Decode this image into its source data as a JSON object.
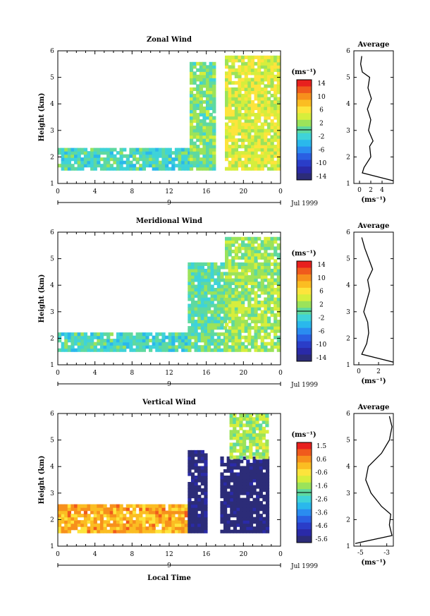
{
  "panels": [
    {
      "title": "Zonal Wind",
      "ylabel": "Height (km)",
      "unit": "(ms⁻¹)",
      "yticks": [
        "1",
        "2",
        "3",
        "4",
        "5",
        "6"
      ],
      "xticks": [
        "0",
        "4",
        "8",
        "12",
        "16",
        "20",
        "0"
      ],
      "day": "9",
      "date_label": "Jul 1999",
      "colorbar": [
        "14",
        "10",
        "6",
        "2",
        "-2",
        "-6",
        "-10",
        "-14"
      ],
      "avg": {
        "title": "Average",
        "yticks": [
          "1",
          "2",
          "3",
          "4",
          "5",
          "6"
        ],
        "xticks": [
          "0",
          "2",
          "4"
        ],
        "xlabel": "(ms⁻¹)"
      }
    },
    {
      "title": "Meridional Wind",
      "ylabel": "Height (km)",
      "unit": "(ms⁻¹)",
      "yticks": [
        "1",
        "2",
        "3",
        "4",
        "5",
        "6"
      ],
      "xticks": [
        "0",
        "4",
        "8",
        "12",
        "16",
        "20",
        "0"
      ],
      "day": "9",
      "date_label": "Jul 1999",
      "colorbar": [
        "14",
        "10",
        "6",
        "2",
        "-2",
        "-6",
        "-10",
        "-14"
      ],
      "avg": {
        "title": "Average",
        "yticks": [
          "1",
          "2",
          "3",
          "4",
          "5",
          "6"
        ],
        "xticks": [
          "0",
          "2"
        ],
        "xlabel": "(ms⁻¹)"
      }
    },
    {
      "title": "Vertical Wind",
      "ylabel": "Height (km)",
      "unit": "(ms⁻¹)",
      "yticks": [
        "1",
        "2",
        "3",
        "4",
        "5",
        "6"
      ],
      "xticks": [
        "0",
        "4",
        "8",
        "12",
        "16",
        "20",
        "0"
      ],
      "day": "9",
      "date_label": "Jul 1999",
      "xlabel": "Local Time",
      "colorbar": [
        "1.5",
        "0.6",
        "-0.6",
        "-1.6",
        "-2.6",
        "-3.6",
        "-4.6",
        "-5.6"
      ],
      "avg": {
        "title": "Average",
        "yticks": [
          "1",
          "2",
          "3",
          "4",
          "5",
          "6"
        ],
        "xticks": [
          "-5",
          "-3"
        ],
        "xlabel": "(ms⁻¹)"
      }
    }
  ],
  "chart_data": [
    {
      "type": "heatmap",
      "title": "Zonal Wind",
      "ylabel": "Height (km)",
      "x_range_hours": [
        0,
        24
      ],
      "ylim": [
        1,
        6
      ],
      "colorbar_range": [
        -14,
        14
      ],
      "colormap": "jet",
      "data_regions": [
        {
          "x": [
            0,
            14
          ],
          "y": [
            1.5,
            2.3
          ],
          "value": -1
        },
        {
          "x": [
            14.2,
            17
          ],
          "y": [
            1.5,
            5.5
          ],
          "value": 1
        },
        {
          "x": [
            18,
            24
          ],
          "y": [
            1.5,
            5.8
          ],
          "value": 4
        }
      ],
      "average_profile": {
        "xlim": [
          -1,
          6
        ],
        "height_km": [
          1.1,
          1.4,
          1.6,
          2.0,
          2.4,
          2.6,
          3.0,
          3.4,
          3.8,
          4.2,
          4.6,
          5.0,
          5.2,
          5.5,
          5.8
        ],
        "speed_ms": [
          6,
          0.5,
          0.8,
          2.0,
          1.8,
          2.4,
          1.6,
          2.0,
          1.4,
          2.1,
          1.5,
          1.8,
          0.5,
          0.2,
          0.4
        ]
      }
    },
    {
      "type": "heatmap",
      "title": "Meridional Wind",
      "ylabel": "Height (km)",
      "x_range_hours": [
        0,
        24
      ],
      "ylim": [
        1,
        6
      ],
      "colorbar_range": [
        -14,
        14
      ],
      "colormap": "jet",
      "data_regions": [
        {
          "x": [
            0,
            14
          ],
          "y": [
            1.5,
            2.2
          ],
          "value": -1
        },
        {
          "x": [
            14,
            18
          ],
          "y": [
            1.5,
            4.8
          ],
          "value": 0
        },
        {
          "x": [
            18,
            24
          ],
          "y": [
            1.5,
            5.8
          ],
          "value": 2
        }
      ],
      "average_profile": {
        "xlim": [
          -0.5,
          3.5
        ],
        "height_km": [
          1.1,
          1.4,
          1.8,
          2.2,
          2.6,
          3.0,
          3.4,
          3.8,
          4.2,
          4.6,
          5.0,
          5.4,
          5.8
        ],
        "speed_ms": [
          3.5,
          0.3,
          0.8,
          1.0,
          0.9,
          0.5,
          0.8,
          1.1,
          0.9,
          1.4,
          1.0,
          0.6,
          0.3
        ]
      }
    },
    {
      "type": "heatmap",
      "title": "Vertical Wind",
      "ylabel": "Height (km)",
      "xlabel": "Local Time",
      "x_range_hours": [
        0,
        24
      ],
      "ylim": [
        1,
        6
      ],
      "colorbar_range": [
        -5.6,
        1.5
      ],
      "colormap": "jet",
      "data_regions": [
        {
          "x": [
            0,
            14
          ],
          "y": [
            1.5,
            2.5
          ],
          "value": 0
        },
        {
          "x": [
            14,
            16
          ],
          "y": [
            1.5,
            4.6
          ],
          "value": -5.5
        },
        {
          "x": [
            17.5,
            22.5
          ],
          "y": [
            1.5,
            4.3
          ],
          "value": -5.6
        },
        {
          "x": [
            18.5,
            22.5
          ],
          "y": [
            4.3,
            6.0
          ],
          "value": -1.5
        }
      ],
      "average_profile": {
        "xlim": [
          -5.5,
          -2.5
        ],
        "height_km": [
          1.1,
          1.4,
          1.8,
          2.2,
          2.5,
          3.0,
          3.5,
          4.0,
          4.5,
          5.0,
          5.5,
          5.9
        ],
        "speed_ms": [
          -5.4,
          -2.6,
          -2.8,
          -2.7,
          -3.4,
          -4.2,
          -4.6,
          -4.4,
          -3.4,
          -2.8,
          -2.6,
          -2.8
        ]
      }
    }
  ]
}
